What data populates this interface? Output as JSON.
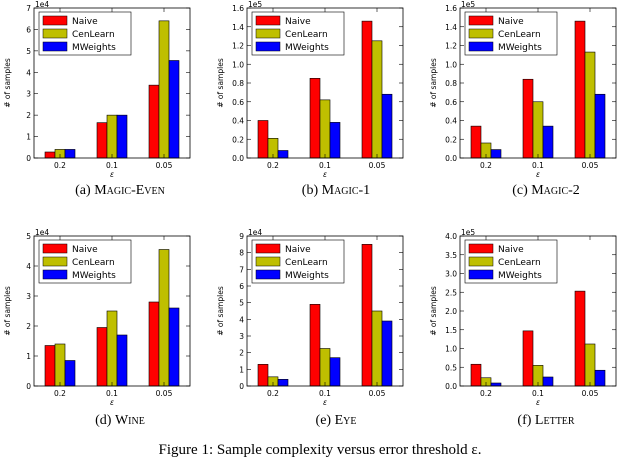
{
  "colors": {
    "Naive": "#ff0000",
    "CenLearn": "#bfbf00",
    "MWeights": "#0000ff"
  },
  "figure_caption": "Figure 1: Sample complexity versus error threshold ε.",
  "chart_data": [
    {
      "type": "bar",
      "caption_label": "(a)",
      "caption_name": "Magic-Even",
      "categories": [
        "0.2",
        "0.1",
        "0.05"
      ],
      "xlabel": "ε",
      "ylabel": "# of samples",
      "exponent_label": "1e4",
      "ylim": [
        0,
        70000
      ],
      "yticks": [
        0,
        10000,
        20000,
        30000,
        40000,
        50000,
        60000,
        70000
      ],
      "ytick_labels": [
        "0",
        "1",
        "2",
        "3",
        "4",
        "5",
        "6",
        "7"
      ],
      "legend": "top-left",
      "series": [
        {
          "name": "Naive",
          "values": [
            2800,
            16500,
            34000
          ]
        },
        {
          "name": "CenLearn",
          "values": [
            4000,
            20000,
            64000
          ]
        },
        {
          "name": "MWeights",
          "values": [
            4000,
            20000,
            45500
          ]
        }
      ]
    },
    {
      "type": "bar",
      "caption_label": "(b)",
      "caption_name": "Magic-1",
      "categories": [
        "0.2",
        "0.1",
        "0.05"
      ],
      "xlabel": "ε",
      "ylabel": "# of samples",
      "exponent_label": "1e5",
      "ylim": [
        0,
        160000
      ],
      "yticks": [
        0,
        20000,
        40000,
        60000,
        80000,
        100000,
        120000,
        140000,
        160000
      ],
      "ytick_labels": [
        "0.0",
        "0.2",
        "0.4",
        "0.6",
        "0.8",
        "1.0",
        "1.2",
        "1.4",
        "1.6"
      ],
      "legend": "top-left",
      "series": [
        {
          "name": "Naive",
          "values": [
            40000,
            85000,
            146000
          ]
        },
        {
          "name": "CenLearn",
          "values": [
            21000,
            62000,
            125000
          ]
        },
        {
          "name": "MWeights",
          "values": [
            8000,
            38000,
            68000
          ]
        }
      ]
    },
    {
      "type": "bar",
      "caption_label": "(c)",
      "caption_name": "Magic-2",
      "categories": [
        "0.2",
        "0.1",
        "0.05"
      ],
      "xlabel": "ε",
      "ylabel": "# of samples",
      "exponent_label": "1e5",
      "ylim": [
        0,
        160000
      ],
      "yticks": [
        0,
        20000,
        40000,
        60000,
        80000,
        100000,
        120000,
        140000,
        160000
      ],
      "ytick_labels": [
        "0.0",
        "0.2",
        "0.4",
        "0.6",
        "0.8",
        "1.0",
        "1.2",
        "1.4",
        "1.6"
      ],
      "legend": "top-left",
      "series": [
        {
          "name": "Naive",
          "values": [
            34000,
            84000,
            146000
          ]
        },
        {
          "name": "CenLearn",
          "values": [
            16000,
            60000,
            113000
          ]
        },
        {
          "name": "MWeights",
          "values": [
            9000,
            34000,
            68000
          ]
        }
      ]
    },
    {
      "type": "bar",
      "caption_label": "(d)",
      "caption_name": "Wine",
      "categories": [
        "0.2",
        "0.1",
        "0.05"
      ],
      "xlabel": "ε",
      "ylabel": "# of samples",
      "exponent_label": "1e4",
      "ylim": [
        0,
        50000
      ],
      "yticks": [
        0,
        10000,
        20000,
        30000,
        40000,
        50000
      ],
      "ytick_labels": [
        "0",
        "1",
        "2",
        "3",
        "4",
        "5"
      ],
      "legend": "top-left",
      "series": [
        {
          "name": "Naive",
          "values": [
            13500,
            19500,
            28000
          ]
        },
        {
          "name": "CenLearn",
          "values": [
            14000,
            25000,
            45500
          ]
        },
        {
          "name": "MWeights",
          "values": [
            8500,
            17000,
            26000
          ]
        }
      ]
    },
    {
      "type": "bar",
      "caption_label": "(e)",
      "caption_name": "Eye",
      "categories": [
        "0.2",
        "0.1",
        "0.05"
      ],
      "xlabel": "ε",
      "ylabel": "# of samples",
      "exponent_label": "1e4",
      "ylim": [
        0,
        90000
      ],
      "yticks": [
        0,
        10000,
        20000,
        30000,
        40000,
        50000,
        60000,
        70000,
        80000,
        90000
      ],
      "ytick_labels": [
        "0",
        "1",
        "2",
        "3",
        "4",
        "5",
        "6",
        "7",
        "8",
        "9"
      ],
      "legend": "top-left",
      "series": [
        {
          "name": "Naive",
          "values": [
            13000,
            49000,
            85000
          ]
        },
        {
          "name": "CenLearn",
          "values": [
            5500,
            22500,
            45000
          ]
        },
        {
          "name": "MWeights",
          "values": [
            4000,
            17000,
            39000
          ]
        }
      ]
    },
    {
      "type": "bar",
      "caption_label": "(f)",
      "caption_name": "Letter",
      "categories": [
        "0.2",
        "0.1",
        "0.05"
      ],
      "xlabel": "ε",
      "ylabel": "# of samples",
      "exponent_label": "1e5",
      "ylim": [
        0,
        400000
      ],
      "yticks": [
        0,
        50000,
        100000,
        150000,
        200000,
        250000,
        300000,
        350000,
        400000
      ],
      "ytick_labels": [
        "0.0",
        "0.5",
        "1.0",
        "1.5",
        "2.0",
        "2.5",
        "3.0",
        "3.5",
        "4.0"
      ],
      "legend": "top-left",
      "series": [
        {
          "name": "Naive",
          "values": [
            58000,
            147000,
            253000
          ]
        },
        {
          "name": "CenLearn",
          "values": [
            22000,
            55000,
            112000
          ]
        },
        {
          "name": "MWeights",
          "values": [
            8000,
            24000,
            42000
          ]
        }
      ]
    }
  ]
}
